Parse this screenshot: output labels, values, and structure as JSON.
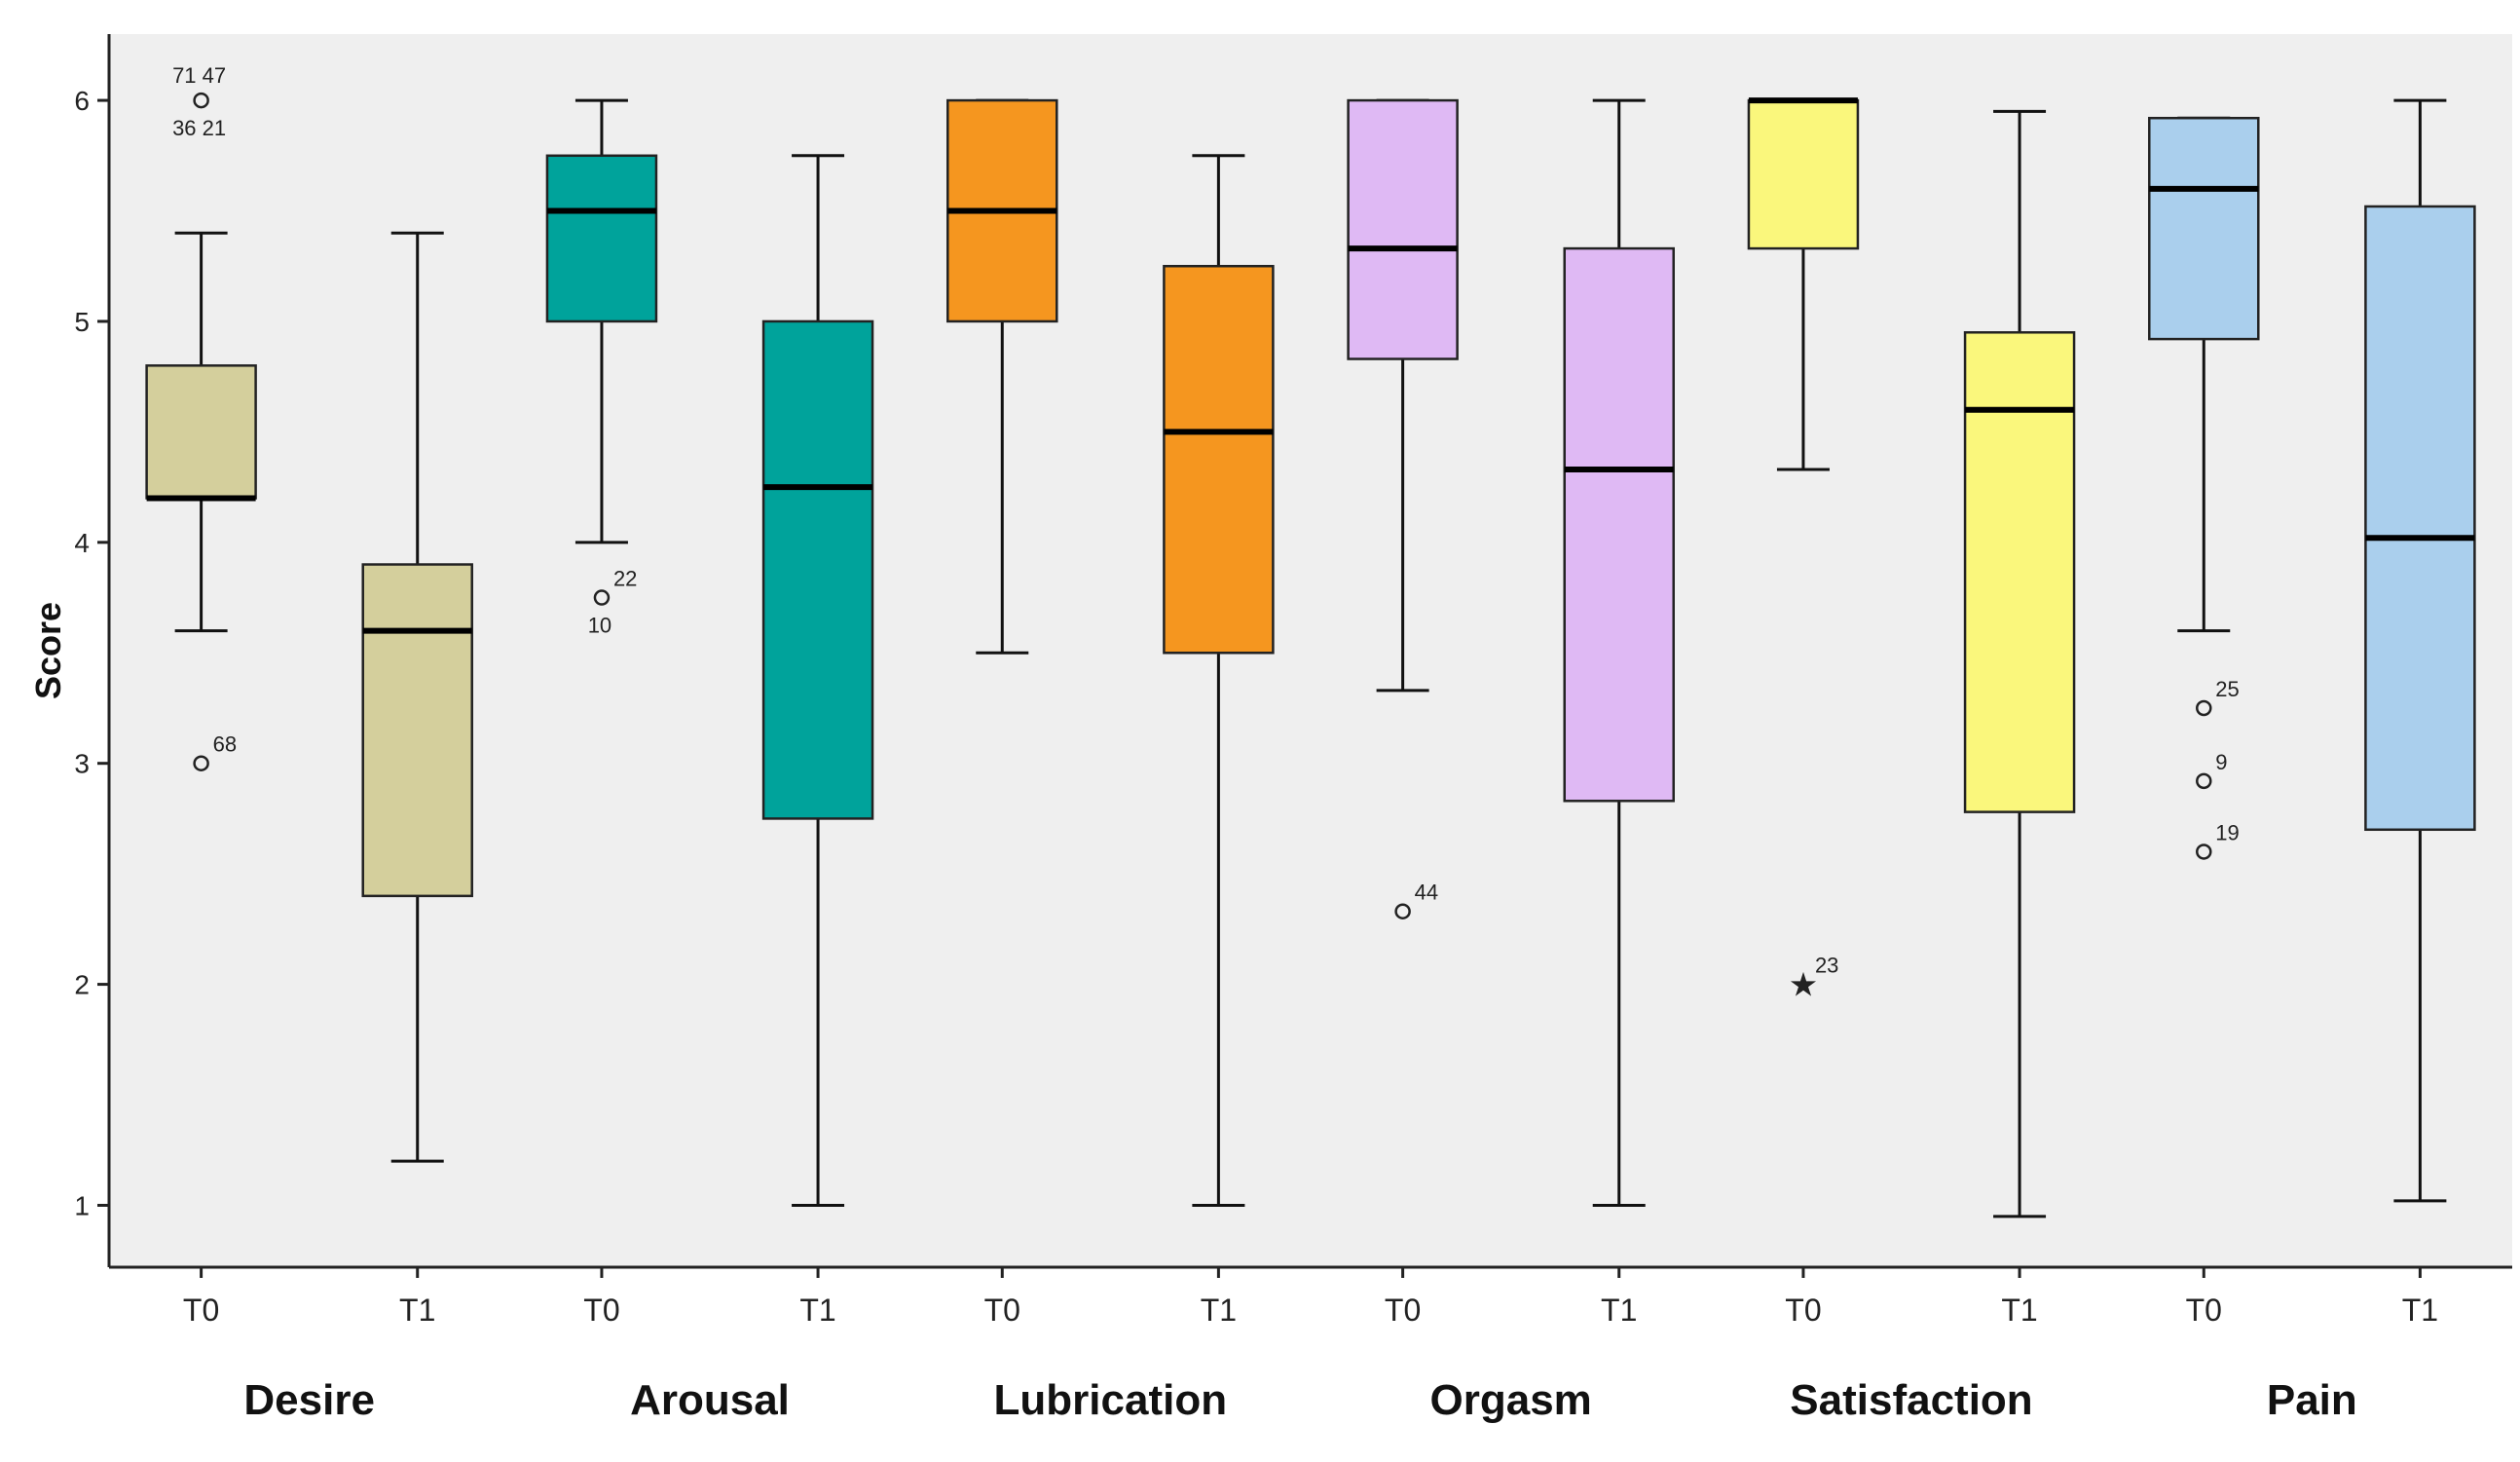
{
  "chart_data": {
    "type": "boxplot",
    "ylabel": "Score",
    "xlabel": "",
    "ylim": [
      0.72,
      6.3
    ],
    "yticks": [
      1,
      2,
      3,
      4,
      5,
      6
    ],
    "grid": false,
    "colors": {
      "Desire": "#d4cf9c",
      "Arousal": "#00a39b",
      "Lubrication": "#f5961f",
      "Orgasm": "#dfb9f4",
      "Satisfaction": "#faf77c",
      "Pain": "#aacfed",
      "plot_background": "#efefef"
    },
    "groups": [
      {
        "name": "Desire",
        "boxes": [
          {
            "label": "T0",
            "min": 3.6,
            "q1": 4.2,
            "median": 4.2,
            "q3": 4.8,
            "max": 5.4,
            "outliers": [
              {
                "value": 6.0,
                "label": "71 47",
                "marker": "circle"
              },
              {
                "value": 6.0,
                "label": "36 21",
                "marker": "none",
                "label_below": true
              },
              {
                "value": 3.0,
                "label": "68",
                "marker": "circle"
              }
            ]
          },
          {
            "label": "T1",
            "min": 1.2,
            "q1": 2.4,
            "median": 3.6,
            "q3": 3.9,
            "max": 5.4,
            "outliers": []
          }
        ]
      },
      {
        "name": "Arousal",
        "boxes": [
          {
            "label": "T0",
            "min": 4.0,
            "q1": 5.0,
            "median": 5.5,
            "q3": 5.75,
            "max": 6.0,
            "outliers": [
              {
                "value": 3.75,
                "label": "22",
                "marker": "circle"
              },
              {
                "value": 3.75,
                "label": "10",
                "marker": "none",
                "label_below": true
              }
            ]
          },
          {
            "label": "T1",
            "min": 1.0,
            "q1": 2.75,
            "median": 4.25,
            "q3": 5.0,
            "max": 5.75,
            "outliers": []
          }
        ]
      },
      {
        "name": "Lubrication",
        "boxes": [
          {
            "label": "T0",
            "min": 3.5,
            "q1": 5.0,
            "median": 5.5,
            "q3": 6.0,
            "max": 6.0,
            "outliers": []
          },
          {
            "label": "T1",
            "min": 1.0,
            "q1": 3.5,
            "median": 4.5,
            "q3": 5.25,
            "max": 5.75,
            "outliers": []
          }
        ]
      },
      {
        "name": "Orgasm",
        "boxes": [
          {
            "label": "T0",
            "min": 3.33,
            "q1": 4.83,
            "median": 5.33,
            "q3": 6.0,
            "max": 6.0,
            "outliers": [
              {
                "value": 2.33,
                "label": "44",
                "marker": "circle"
              }
            ]
          },
          {
            "label": "T1",
            "min": 1.0,
            "q1": 2.83,
            "median": 4.33,
            "q3": 5.33,
            "max": 6.0,
            "outliers": []
          }
        ]
      },
      {
        "name": "Satisfaction",
        "boxes": [
          {
            "label": "T0",
            "min": 4.33,
            "q1": 5.33,
            "median": 6.0,
            "q3": 6.0,
            "max": 6.0,
            "outliers": [
              {
                "value": 2.0,
                "label": "23",
                "marker": "star"
              }
            ]
          },
          {
            "label": "T1",
            "min": 0.95,
            "q1": 2.78,
            "median": 4.6,
            "q3": 4.95,
            "max": 5.95,
            "outliers": []
          }
        ]
      },
      {
        "name": "Pain",
        "boxes": [
          {
            "label": "T0",
            "min": 3.6,
            "q1": 4.92,
            "median": 5.6,
            "q3": 5.92,
            "max": 5.92,
            "outliers": [
              {
                "value": 3.25,
                "label": "25",
                "marker": "circle"
              },
              {
                "value": 2.92,
                "label": "9",
                "marker": "circle"
              },
              {
                "value": 2.6,
                "label": "19",
                "marker": "circle"
              }
            ]
          },
          {
            "label": "T1",
            "min": 1.02,
            "q1": 2.7,
            "median": 4.02,
            "q3": 5.52,
            "max": 6.0,
            "outliers": []
          }
        ]
      }
    ]
  }
}
